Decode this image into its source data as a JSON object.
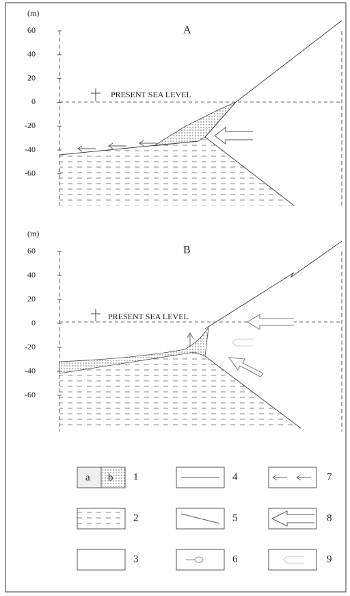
{
  "panels": [
    {
      "label": "A",
      "unit": "(m)",
      "yticks": [
        "60",
        "40",
        "20",
        "0",
        "-20",
        "-40",
        "-60"
      ],
      "sea_level": "PRESENT SEA LEVEL"
    },
    {
      "label": "B",
      "unit": "(m)",
      "yticks": [
        "60",
        "40",
        "20",
        "0",
        "-20",
        "-40",
        "-60"
      ],
      "sea_level": "PRESENT SEA LEVEL"
    }
  ],
  "legend": [
    {
      "number": "1",
      "parts": [
        "a",
        "b"
      ]
    },
    {
      "number": "2"
    },
    {
      "number": "3"
    },
    {
      "number": "4"
    },
    {
      "number": "5"
    },
    {
      "number": "6"
    },
    {
      "number": "7"
    },
    {
      "number": "8"
    },
    {
      "number": "9"
    }
  ]
}
